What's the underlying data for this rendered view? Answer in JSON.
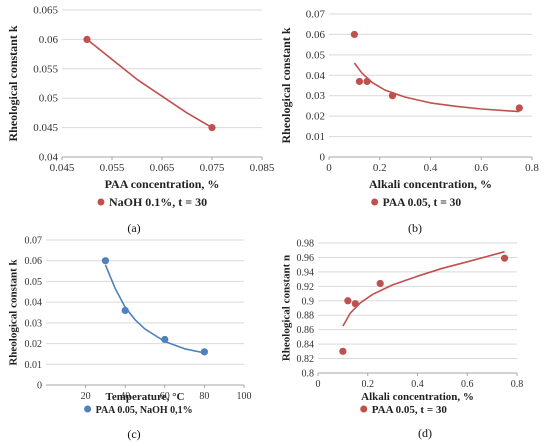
{
  "colors": {
    "red": "#C0504D",
    "blue": "#4F81BD",
    "grid": "#D9D9D9",
    "axis": "#A6A6A6"
  },
  "chart_data": [
    {
      "type": "scatter",
      "caption": "(a)",
      "xlabel": "PAA concentration, %",
      "ylabel": "Rheological constant k",
      "xlim": [
        0.045,
        0.085
      ],
      "ylim": [
        0.04,
        0.065
      ],
      "xticks": [
        0.045,
        0.055,
        0.065,
        0.075,
        0.085
      ],
      "xtick_labels": [
        "0.045",
        "0.055",
        "0.065",
        "0.075",
        "0.085"
      ],
      "yticks": [
        0.04,
        0.045,
        0.05,
        0.055,
        0.06,
        0.065
      ],
      "ytick_labels": [
        "0.04",
        "0.045",
        "0.05",
        "0.055",
        "0.06",
        "0.065"
      ],
      "grid": "horizontal",
      "legend": "bottom",
      "color": "#C0504D",
      "series": [
        {
          "name": "NaOH 0.1%, t = 30",
          "x": [
            0.05,
            0.075
          ],
          "y": [
            0.06,
            0.045
          ]
        }
      ],
      "trend": {
        "x": [
          0.05,
          0.06,
          0.07,
          0.075
        ],
        "y": [
          0.06,
          0.0532,
          0.0475,
          0.045
        ]
      }
    },
    {
      "type": "scatter",
      "caption": "(b)",
      "xlabel": "Alkali concentration, %",
      "ylabel": "Rheological constant k",
      "xlim": [
        0,
        0.8
      ],
      "ylim": [
        0,
        0.07
      ],
      "xticks": [
        0,
        0.2,
        0.4,
        0.6,
        0.8
      ],
      "xtick_labels": [
        "0",
        "0.2",
        "0.4",
        "0.6",
        "0.8"
      ],
      "yticks": [
        0,
        0.01,
        0.02,
        0.03,
        0.04,
        0.05,
        0.06,
        0.07
      ],
      "ytick_labels": [
        "0",
        "0.01",
        "0.02",
        "0.03",
        "0.04",
        "0.05",
        "0.06",
        "0.07"
      ],
      "grid": "horizontal",
      "legend": "bottom",
      "color": "#C0504D",
      "series": [
        {
          "name": "PAA 0.05, t = 30",
          "x": [
            0.1,
            0.12,
            0.15,
            0.25,
            0.75
          ],
          "y": [
            0.06,
            0.037,
            0.037,
            0.03,
            0.024
          ]
        }
      ],
      "trend": {
        "x": [
          0.1,
          0.13,
          0.17,
          0.22,
          0.3,
          0.4,
          0.5,
          0.6,
          0.75
        ],
        "y": [
          0.046,
          0.041,
          0.0365,
          0.0328,
          0.0293,
          0.0265,
          0.0248,
          0.0235,
          0.0222
        ]
      }
    },
    {
      "type": "scatter",
      "caption": "(c)",
      "xlabel": "Temperature, °C",
      "ylabel": "Rheological constant k",
      "xlim": [
        0,
        100
      ],
      "ylim": [
        0,
        0.07
      ],
      "xticks": [
        20,
        40,
        60,
        80,
        100
      ],
      "xtick_labels": [
        "20",
        "40",
        "60",
        "80",
        "100"
      ],
      "yticks": [
        0,
        0.01,
        0.02,
        0.03,
        0.04,
        0.05,
        0.06,
        0.07
      ],
      "ytick_labels": [
        "0",
        "0.01",
        "0.02",
        "0.03",
        "0.04",
        "0.05",
        "0.06",
        "0.07"
      ],
      "grid": "horizontal",
      "legend": "bottom",
      "color": "#4F81BD",
      "series": [
        {
          "name": "PAA 0.05, NaOH 0,1%",
          "x": [
            30,
            40,
            60,
            80
          ],
          "y": [
            0.06,
            0.036,
            0.022,
            0.016
          ]
        }
      ],
      "trend": {
        "x": [
          30,
          35,
          40,
          45,
          50,
          60,
          70,
          80
        ],
        "y": [
          0.058,
          0.0465,
          0.0375,
          0.0315,
          0.027,
          0.021,
          0.0175,
          0.0155
        ]
      }
    },
    {
      "type": "scatter",
      "caption": "(d)",
      "xlabel": "Alkali concentration, %",
      "ylabel": "Rheological constant n",
      "xlim": [
        0,
        0.8
      ],
      "ylim": [
        0.8,
        0.98
      ],
      "xticks": [
        0,
        0.2,
        0.4,
        0.6,
        0.8
      ],
      "xtick_labels": [
        "0",
        "0.2",
        "0.4",
        "0.6",
        "0.8"
      ],
      "yticks": [
        0.8,
        0.82,
        0.84,
        0.86,
        0.88,
        0.9,
        0.92,
        0.94,
        0.96,
        0.98
      ],
      "ytick_labels": [
        "0.8",
        "0.82",
        "0.84",
        "0.86",
        "0.88",
        "0.9",
        "0.92",
        "0.94",
        "0.96",
        "0.98"
      ],
      "grid": "horizontal",
      "legend": "bottom",
      "color": "#C0504D",
      "series": [
        {
          "name": "PAA 0.05, t = 30",
          "x": [
            0.1,
            0.12,
            0.15,
            0.25,
            0.75
          ],
          "y": [
            0.83,
            0.9,
            0.896,
            0.924,
            0.959
          ]
        }
      ],
      "trend": {
        "x": [
          0.1,
          0.13,
          0.17,
          0.22,
          0.3,
          0.4,
          0.5,
          0.6,
          0.75
        ],
        "y": [
          0.865,
          0.883,
          0.897,
          0.909,
          0.922,
          0.934,
          0.945,
          0.954,
          0.968
        ]
      }
    }
  ]
}
